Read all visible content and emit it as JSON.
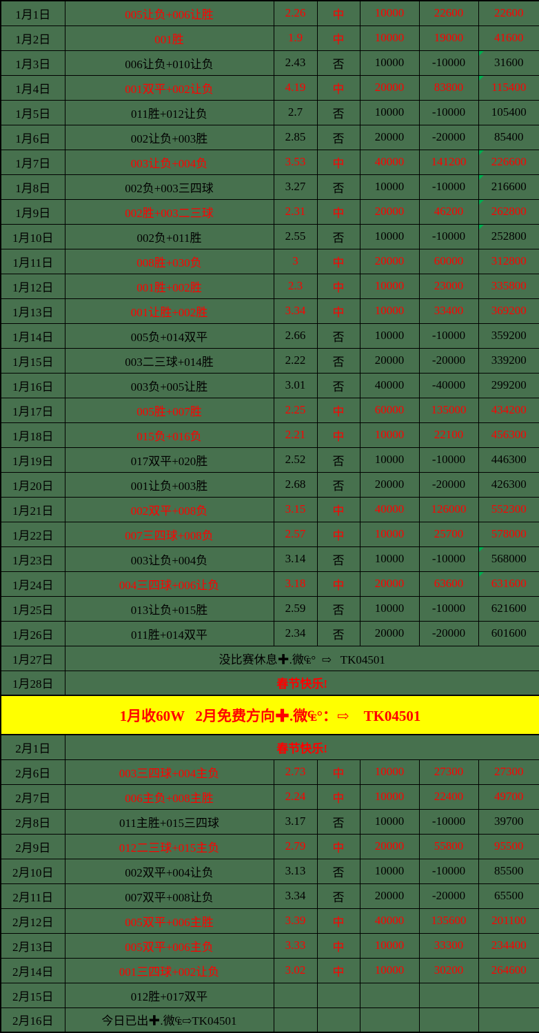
{
  "table": {
    "colors": {
      "background_green": "#47714E",
      "win_text": "#FF0000",
      "loss_text": "#000000",
      "grid": "#000000",
      "banner_background": "#FFFF00",
      "banner_text": "#FF0000",
      "corner_flag": "#00B050"
    },
    "result_labels": {
      "win": "中",
      "loss": "否"
    },
    "rows": [
      {
        "type": "bet",
        "status": "win",
        "date": "1月1日",
        "desc": "005让负+006让胜",
        "odds": "2.26",
        "result": "中",
        "stake": "10000",
        "profit": "22600",
        "total": "22600",
        "flag": false
      },
      {
        "type": "bet",
        "status": "win",
        "date": "1月2日",
        "desc": "001胜",
        "odds": "1.9",
        "result": "中",
        "stake": "10000",
        "profit": "19000",
        "total": "41600",
        "flag": false
      },
      {
        "type": "bet",
        "status": "loss",
        "date": "1月3日",
        "desc": "006让负+010让负",
        "odds": "2.43",
        "result": "否",
        "stake": "10000",
        "profit": "-10000",
        "total": "31600",
        "flag": true
      },
      {
        "type": "bet",
        "status": "win",
        "date": "1月4日",
        "desc": "001双平+002让负",
        "odds": "4.19",
        "result": "中",
        "stake": "20000",
        "profit": "83800",
        "total": "115400",
        "flag": true
      },
      {
        "type": "bet",
        "status": "loss",
        "date": "1月5日",
        "desc": "011胜+012让负",
        "odds": "2.7",
        "result": "否",
        "stake": "10000",
        "profit": "-10000",
        "total": "105400",
        "flag": false
      },
      {
        "type": "bet",
        "status": "loss",
        "date": "1月6日",
        "desc": "002让负+003胜",
        "odds": "2.85",
        "result": "否",
        "stake": "20000",
        "profit": "-20000",
        "total": "85400",
        "flag": false
      },
      {
        "type": "bet",
        "status": "win",
        "date": "1月7日",
        "desc": "003让负+004负",
        "odds": "3.53",
        "result": "中",
        "stake": "40000",
        "profit": "141200",
        "total": "226600",
        "flag": true
      },
      {
        "type": "bet",
        "status": "loss",
        "date": "1月8日",
        "desc": "002负+003三四球",
        "odds": "3.27",
        "result": "否",
        "stake": "10000",
        "profit": "-10000",
        "total": "216600",
        "flag": true
      },
      {
        "type": "bet",
        "status": "win",
        "date": "1月9日",
        "desc": "002胜+003二三球",
        "odds": "2.31",
        "result": "中",
        "stake": "20000",
        "profit": "46200",
        "total": "262800",
        "flag": true
      },
      {
        "type": "bet",
        "status": "loss",
        "date": "1月10日",
        "desc": "002负+011胜",
        "odds": "2.55",
        "result": "否",
        "stake": "10000",
        "profit": "-10000",
        "total": "252800",
        "flag": true
      },
      {
        "type": "bet",
        "status": "win",
        "date": "1月11日",
        "desc": "008胜+030负",
        "odds": "3",
        "result": "中",
        "stake": "20000",
        "profit": "60000",
        "total": "312800",
        "flag": false
      },
      {
        "type": "bet",
        "status": "win",
        "date": "1月12日",
        "desc": "001胜+002胜",
        "odds": "2.3",
        "result": "中",
        "stake": "10000",
        "profit": "23000",
        "total": "335800",
        "flag": false
      },
      {
        "type": "bet",
        "status": "win",
        "date": "1月13日",
        "desc": "001让胜+002胜",
        "odds": "3.34",
        "result": "中",
        "stake": "10000",
        "profit": "33400",
        "total": "369200",
        "flag": false
      },
      {
        "type": "bet",
        "status": "loss",
        "date": "1月14日",
        "desc": "005负+014双平",
        "odds": "2.66",
        "result": "否",
        "stake": "10000",
        "profit": "-10000",
        "total": "359200",
        "flag": false
      },
      {
        "type": "bet",
        "status": "loss",
        "date": "1月15日",
        "desc": "003二三球+014胜",
        "odds": "2.22",
        "result": "否",
        "stake": "20000",
        "profit": "-20000",
        "total": "339200",
        "flag": false
      },
      {
        "type": "bet",
        "status": "loss",
        "date": "1月16日",
        "desc": "003负+005让胜",
        "odds": "3.01",
        "result": "否",
        "stake": "40000",
        "profit": "-40000",
        "total": "299200",
        "flag": false
      },
      {
        "type": "bet",
        "status": "win",
        "date": "1月17日",
        "desc": "005胜+007胜",
        "odds": "2.25",
        "result": "中",
        "stake": "60000",
        "profit": "135000",
        "total": "434200",
        "flag": false
      },
      {
        "type": "bet",
        "status": "win",
        "date": "1月18日",
        "desc": "015负+016负",
        "odds": "2.21",
        "result": "中",
        "stake": "10000",
        "profit": "22100",
        "total": "456300",
        "flag": false
      },
      {
        "type": "bet",
        "status": "loss",
        "date": "1月19日",
        "desc": "017双平+020胜",
        "odds": "2.52",
        "result": "否",
        "stake": "10000",
        "profit": "-10000",
        "total": "446300",
        "flag": false
      },
      {
        "type": "bet",
        "status": "loss",
        "date": "1月20日",
        "desc": "001让负+003胜",
        "odds": "2.68",
        "result": "否",
        "stake": "20000",
        "profit": "-20000",
        "total": "426300",
        "flag": false
      },
      {
        "type": "bet",
        "status": "win",
        "date": "1月21日",
        "desc": "002双平+008负",
        "odds": "3.15",
        "result": "中",
        "stake": "40000",
        "profit": "126000",
        "total": "552300",
        "flag": false
      },
      {
        "type": "bet",
        "status": "win",
        "date": "1月22日",
        "desc": "007三四球+008负",
        "odds": "2.57",
        "result": "中",
        "stake": "10000",
        "profit": "25700",
        "total": "578000",
        "flag": false
      },
      {
        "type": "bet",
        "status": "loss",
        "date": "1月23日",
        "desc": "003让负+004负",
        "odds": "3.14",
        "result": "否",
        "stake": "10000",
        "profit": "-10000",
        "total": "568000",
        "flag": true
      },
      {
        "type": "bet",
        "status": "win",
        "date": "1月24日",
        "desc": "004三四球+006让负",
        "odds": "3.18",
        "result": "中",
        "stake": "20000",
        "profit": "63600",
        "total": "631600",
        "flag": true
      },
      {
        "type": "bet",
        "status": "loss",
        "date": "1月25日",
        "desc": "013让负+015胜",
        "odds": "2.59",
        "result": "否",
        "stake": "10000",
        "profit": "-10000",
        "total": "621600",
        "flag": false
      },
      {
        "type": "bet",
        "status": "loss",
        "date": "1月26日",
        "desc": "011胜+014双平",
        "odds": "2.34",
        "result": "否",
        "stake": "20000",
        "profit": "-20000",
        "total": "601600",
        "flag": false
      },
      {
        "type": "note",
        "note_style": "black",
        "date": "1月27日",
        "note": "没比赛休息✚.微₠°  ⇨   TK04501"
      },
      {
        "type": "note",
        "note_style": "red",
        "date": "1月28日",
        "note": "春节快乐!"
      },
      {
        "type": "banner",
        "text": "1月收60W   2月免费方向✚.微₠°：⇨    TK04501"
      },
      {
        "type": "note",
        "note_style": "red",
        "date": "2月1日",
        "note": "春节快乐!"
      },
      {
        "type": "bet",
        "status": "win",
        "date": "2月6日",
        "desc": "003三四球+004主负",
        "odds": "2.73",
        "result": "中",
        "stake": "10000",
        "profit": "27300",
        "total": "27300",
        "flag": false
      },
      {
        "type": "bet",
        "status": "win",
        "date": "2月7日",
        "desc": "006主负+008主胜",
        "odds": "2.24",
        "result": "中",
        "stake": "10000",
        "profit": "22400",
        "total": "49700",
        "flag": false
      },
      {
        "type": "bet",
        "status": "loss",
        "date": "2月8日",
        "desc": "011主胜+015三四球",
        "odds": "3.17",
        "result": "否",
        "stake": "10000",
        "profit": "-10000",
        "total": "39700",
        "flag": false
      },
      {
        "type": "bet",
        "status": "win",
        "date": "2月9日",
        "desc": "012二三球+015主负",
        "odds": "2.79",
        "result": "中",
        "stake": "20000",
        "profit": "55800",
        "total": "95500",
        "flag": false
      },
      {
        "type": "bet",
        "status": "loss",
        "date": "2月10日",
        "desc": "002双平+004让负",
        "odds": "3.13",
        "result": "否",
        "stake": "10000",
        "profit": "-10000",
        "total": "85500",
        "flag": false
      },
      {
        "type": "bet",
        "status": "loss",
        "date": "2月11日",
        "desc": "007双平+008让负",
        "odds": "3.34",
        "result": "否",
        "stake": "20000",
        "profit": "-20000",
        "total": "65500",
        "flag": false
      },
      {
        "type": "bet",
        "status": "win",
        "date": "2月12日",
        "desc": "005双平+006主胜",
        "odds": "3.39",
        "result": "中",
        "stake": "40000",
        "profit": "135600",
        "total": "201100",
        "flag": false
      },
      {
        "type": "bet",
        "status": "win",
        "date": "2月13日",
        "desc": "005双平+006主负",
        "odds": "3.33",
        "result": "中",
        "stake": "10000",
        "profit": "33300",
        "total": "234400",
        "flag": false
      },
      {
        "type": "bet",
        "status": "win",
        "date": "2月14日",
        "desc": "001三四球+002让负",
        "odds": "3.02",
        "result": "中",
        "stake": "10000",
        "profit": "30200",
        "total": "264600",
        "flag": false
      },
      {
        "type": "bet",
        "status": "pending",
        "date": "2月15日",
        "desc": "012胜+017双平",
        "odds": "",
        "result": "",
        "stake": "",
        "profit": "",
        "total": "",
        "flag": false
      },
      {
        "type": "bet",
        "status": "pending",
        "date": "2月16日",
        "desc": "今日已出✚.微₠⇨TK04501",
        "odds": "",
        "result": "",
        "stake": "",
        "profit": "",
        "total": "",
        "flag": false
      }
    ]
  }
}
